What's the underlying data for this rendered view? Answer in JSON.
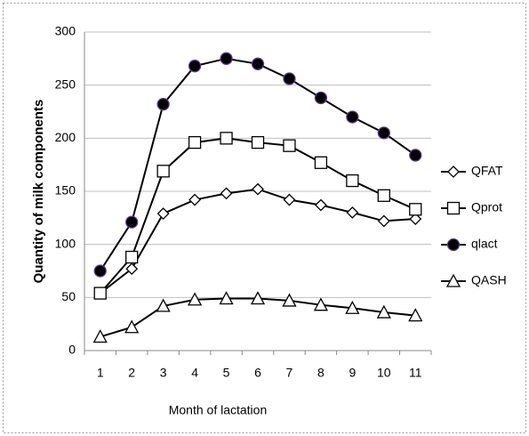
{
  "chart_data": {
    "type": "line",
    "x_label": "Month  of lactation",
    "y_label": "Quantity of milk components",
    "categories": [
      "1",
      "2",
      "3",
      "4",
      "5",
      "6",
      "7",
      "8",
      "9",
      "10",
      "11"
    ],
    "ylim": [
      0,
      300
    ],
    "yticks": [
      0,
      50,
      100,
      150,
      200,
      250,
      300
    ],
    "grid": true,
    "legend_position": "right",
    "series": [
      {
        "name": "QFAT",
        "color": "#000000",
        "marker": "diamond",
        "values": [
          54,
          77,
          129,
          142,
          148,
          152,
          142,
          137,
          130,
          122,
          124
        ]
      },
      {
        "name": "Qprot",
        "color": "#000000",
        "marker": "square",
        "values": [
          54,
          88,
          169,
          196,
          200,
          196,
          193,
          177,
          160,
          146,
          133
        ]
      },
      {
        "name": "qlact",
        "color": "#000000",
        "marker": "circle",
        "values": [
          75,
          121,
          232,
          268,
          275,
          270,
          256,
          238,
          220,
          205,
          184
        ]
      },
      {
        "name": "QASH",
        "color": "#000000",
        "marker": "triangle",
        "values": [
          13,
          22,
          42,
          48,
          49,
          49,
          47,
          43,
          40,
          36,
          33
        ]
      }
    ]
  }
}
